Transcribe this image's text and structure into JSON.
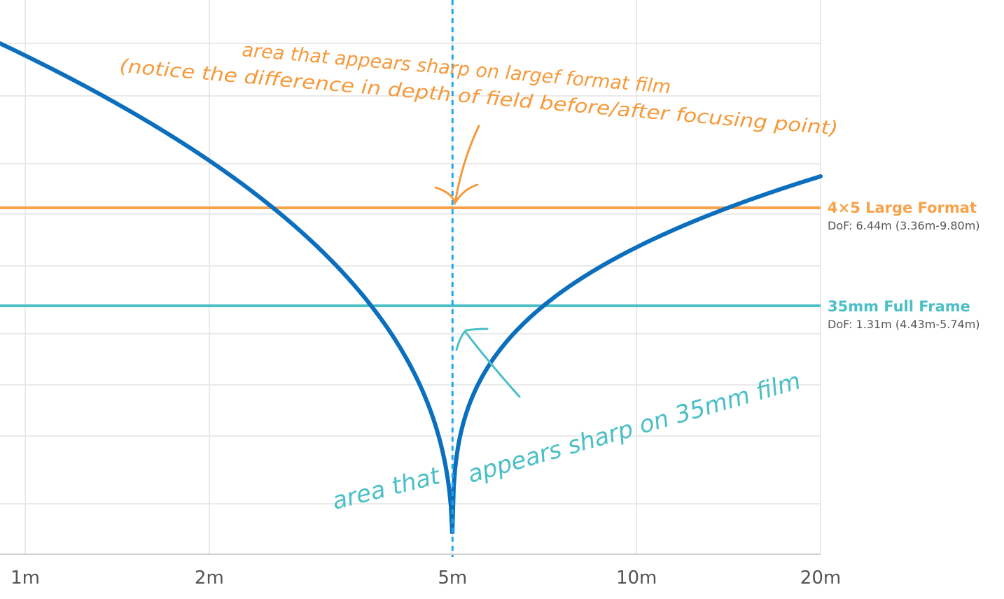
{
  "chart_data": {
    "type": "line",
    "xscale": "log",
    "xlim": [
      "1m",
      "20m"
    ],
    "x_ticks": [
      "1m",
      "2m",
      "5m",
      "10m",
      "20m"
    ],
    "focus_distance": "5m",
    "grid": true,
    "curve": {
      "description": "blur vs subject distance",
      "color": "#0b6fbd",
      "points": [
        {
          "x": 1,
          "y": 1.0
        },
        {
          "x": 1.5,
          "y": 0.86
        },
        {
          "x": 2,
          "y": 0.84
        },
        {
          "x": 3,
          "y": 0.65
        },
        {
          "x": 4,
          "y": 0.42
        },
        {
          "x": 4.6,
          "y": 0.2
        },
        {
          "x": 4.9,
          "y": 0.05
        },
        {
          "x": 5,
          "y": 0.0
        },
        {
          "x": 5.1,
          "y": 0.05
        },
        {
          "x": 6,
          "y": 0.34
        },
        {
          "x": 8,
          "y": 0.62
        },
        {
          "x": 10,
          "y": 0.7
        },
        {
          "x": 20,
          "y": 0.74
        }
      ]
    },
    "series": [
      {
        "name": "4×5 Large Format",
        "dof": "DoF: 6.44m (3.36m-9.80m)",
        "color": "#f7a24a",
        "level": 0.68
      },
      {
        "name": "35mm Full Frame",
        "dof": "DoF: 1.31m (4.43m-5.74m)",
        "color": "#4bbfc6",
        "level": 0.49
      }
    ],
    "annotations": {
      "large_format_line1": "area that appears sharp on largef format film",
      "large_format_line2": "(notice the difference in depth of field before/after focusing point)",
      "ff_part1": "area that",
      "ff_part2": "appears sharp on 35mm film"
    }
  }
}
